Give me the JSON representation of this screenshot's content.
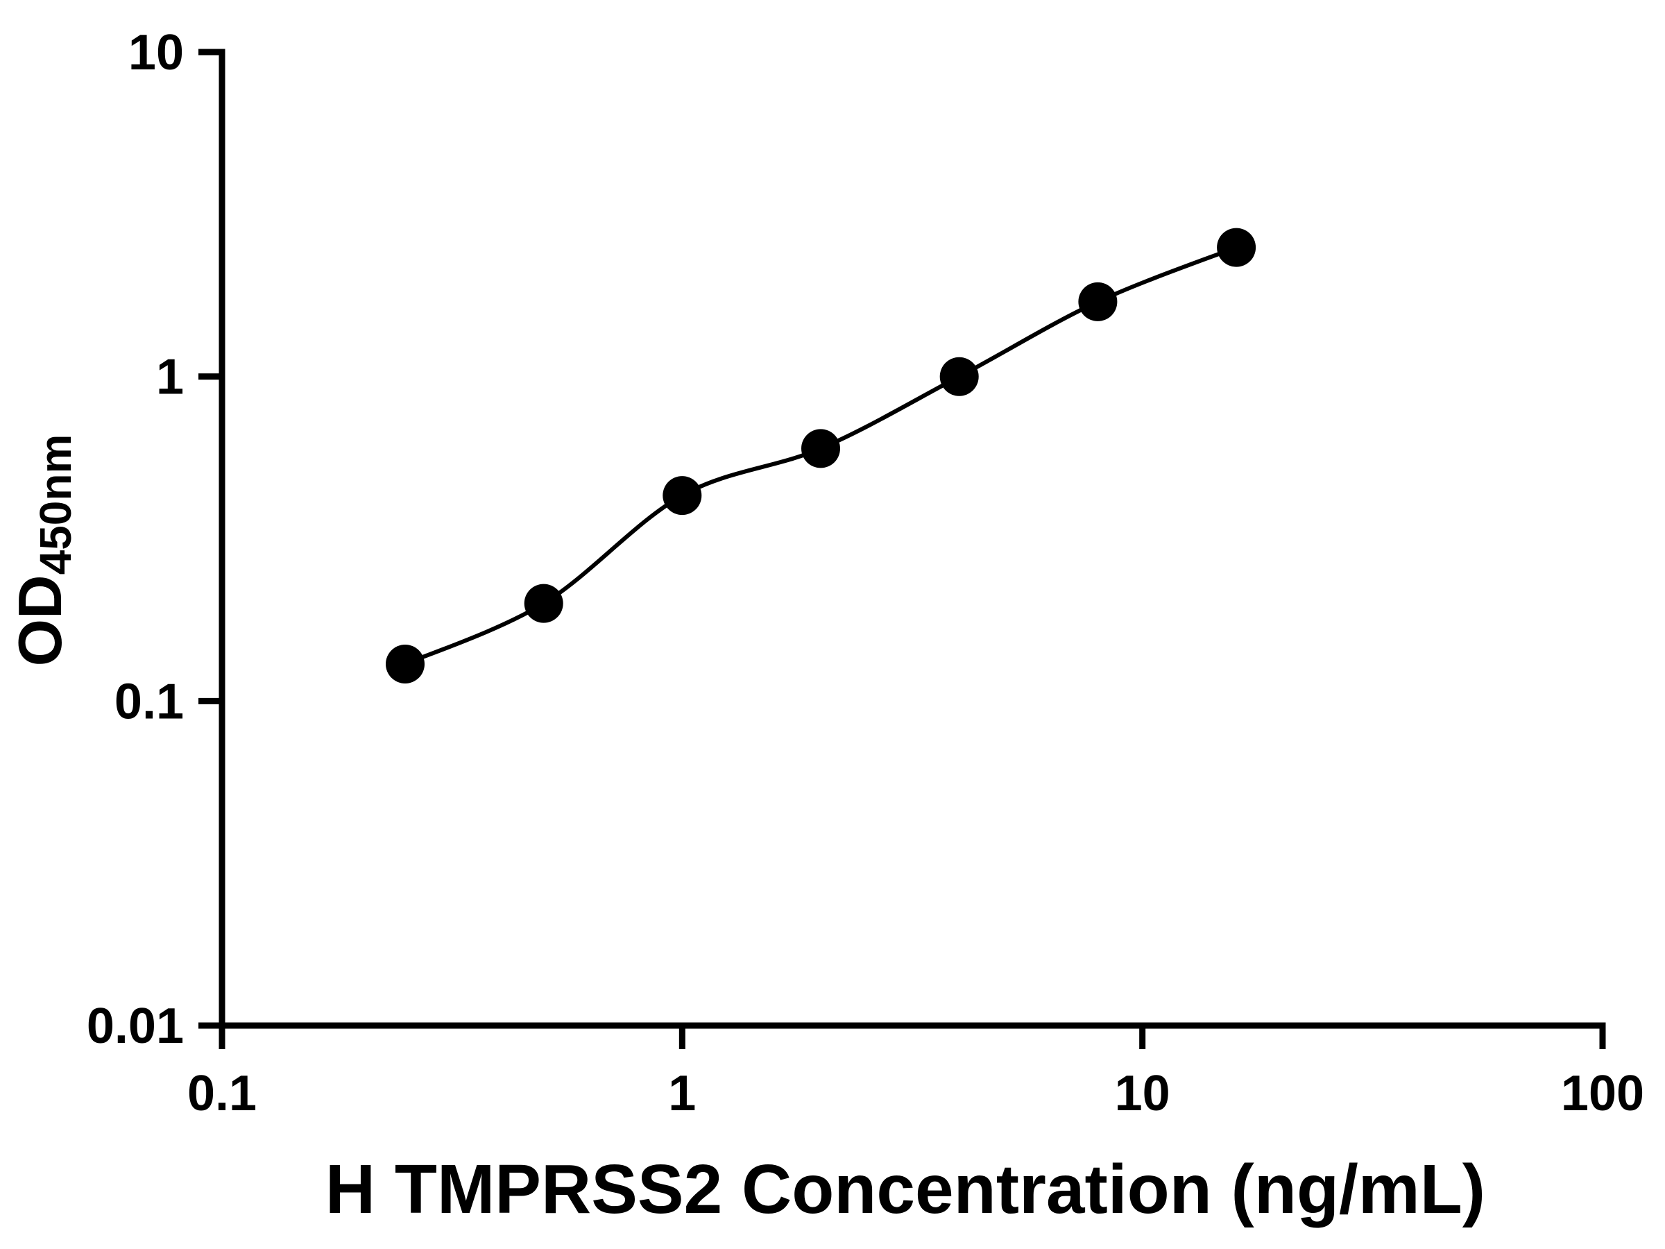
{
  "figure": {
    "background": "#ffffff"
  },
  "chart_data": {
    "type": "scatter",
    "subtype": "elisa-standard-curve-with-fit-line",
    "title": "",
    "xlabel": "H TMPRSS2 Concentration (ng/mL)",
    "ylabel_main": "OD",
    "ylabel_sub": "450nm",
    "x_scale": "log10",
    "y_scale": "log10",
    "xlim": [
      0.1,
      100
    ],
    "ylim": [
      0.01,
      10
    ],
    "x_ticks": [
      0.1,
      1,
      10,
      100
    ],
    "x_tick_labels": [
      "0.1",
      "1",
      "10",
      "100"
    ],
    "y_ticks": [
      0.01,
      0.1,
      1,
      10
    ],
    "y_tick_labels": [
      "0.01",
      "0.1",
      "1",
      "10"
    ],
    "x": [
      0.25,
      0.5,
      1,
      2,
      4,
      8,
      16
    ],
    "y": [
      0.13,
      0.2,
      0.43,
      0.6,
      1.0,
      1.7,
      2.5
    ],
    "grid": false,
    "legend": "none",
    "marker": {
      "shape": "circle",
      "color": "#000000"
    },
    "line": {
      "color": "#000000",
      "style": "smooth-fit"
    },
    "axis_color": "#000000"
  }
}
